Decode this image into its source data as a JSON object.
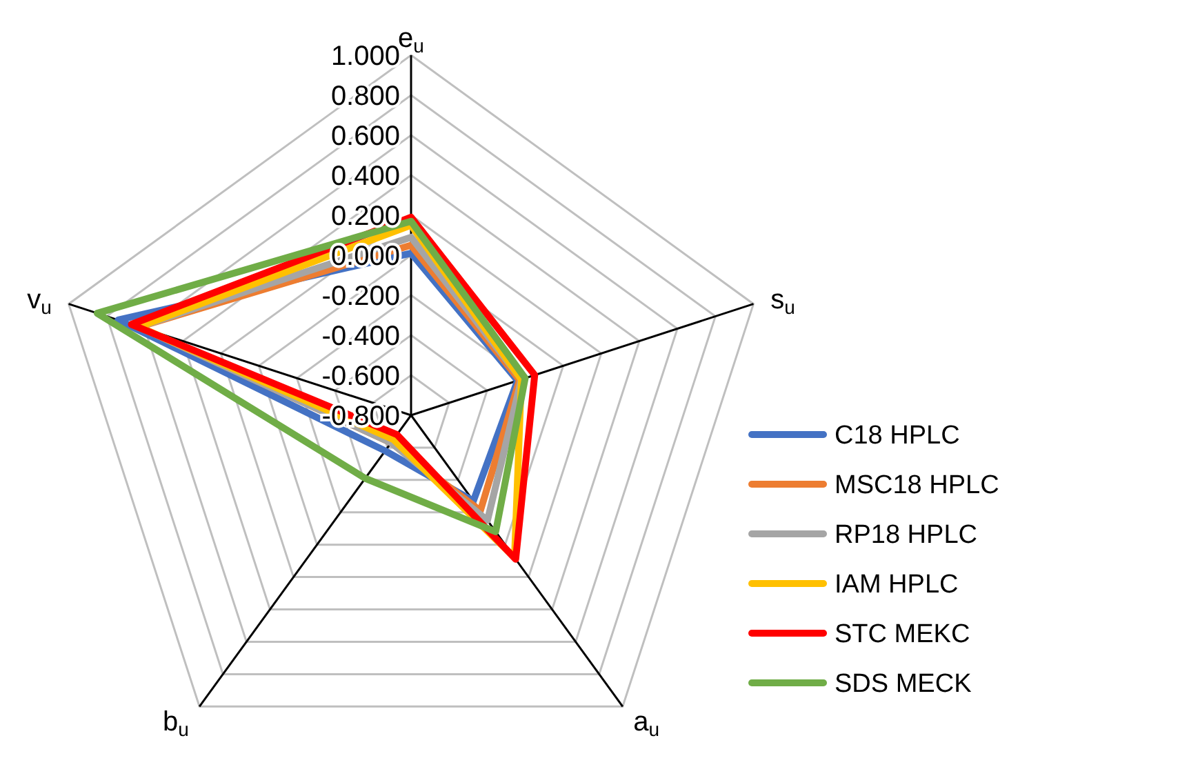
{
  "chart_data": {
    "type": "radar",
    "categories": [
      "e$_{u}$",
      "s$_{u}$",
      "a$_{u}$",
      "b$_{u}$",
      "v$_{u}$"
    ],
    "ylim": [
      -0.8,
      1
    ],
    "yticks": [
      {
        "value": 1,
        "label": "1.000"
      },
      {
        "value": 0.8,
        "label": "0.800"
      },
      {
        "value": 0.6,
        "label": "0.600"
      },
      {
        "value": 0.4,
        "label": "0.400"
      },
      {
        "value": 0.2,
        "label": "0.200"
      },
      {
        "value": 0,
        "label": "0.000"
      },
      {
        "value": -0.2,
        "label": "-0.200"
      },
      {
        "value": -0.4,
        "label": "-0.400"
      },
      {
        "value": -0.6,
        "label": "-0.600"
      },
      {
        "value": -0.8,
        "label": "-0.800"
      }
    ],
    "grid": true,
    "legend": "right",
    "marker": "none",
    "line_style": "solid",
    "series": [
      {
        "name": "C18 HPLC",
        "color": "#4472c4",
        "values": [
          0.01,
          -0.24,
          -0.27,
          -0.58,
          0.74
        ]
      },
      {
        "name": "MSC18 HPLC",
        "color": "#ed7d31",
        "values": [
          0.05,
          -0.23,
          -0.21,
          -0.63,
          0.63
        ]
      },
      {
        "name": "RP18 HPLC",
        "color": "#a5a5a5",
        "values": [
          0.09,
          -0.22,
          -0.15,
          -0.63,
          0.63
        ]
      },
      {
        "name": "IAM HPLC",
        "color": "#ffc000",
        "values": [
          0.15,
          -0.22,
          0.08,
          -0.65,
          0.63
        ]
      },
      {
        "name": "STC MEKC",
        "color": "#ff0000",
        "values": [
          0.19,
          -0.15,
          0.09,
          -0.68,
          0.67
        ]
      },
      {
        "name": "SDS MECK",
        "color": "#70ad47",
        "values": [
          0.17,
          -0.2,
          -0.08,
          -0.41,
          0.85
        ]
      }
    ]
  }
}
